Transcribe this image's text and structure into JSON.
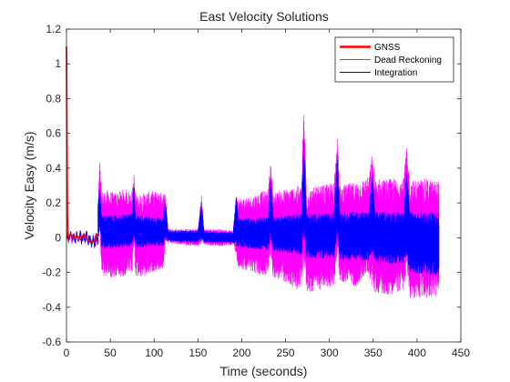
{
  "chart_data": {
    "type": "line",
    "title": "East Velocity Solutions",
    "xlabel": "Time (seconds)",
    "ylabel": "Velocity Easy (m/s)",
    "xlim": [
      0,
      450
    ],
    "ylim": [
      -0.6,
      1.2
    ],
    "xticks": [
      0,
      50,
      100,
      150,
      200,
      250,
      300,
      350,
      400,
      450
    ],
    "yticks": [
      -0.6,
      -0.4,
      -0.2,
      0,
      0.2,
      0.4,
      0.6,
      0.8,
      1,
      1.2
    ],
    "xtick_labels": [
      "0",
      "50",
      "100",
      "150",
      "200",
      "250",
      "300",
      "350",
      "400",
      "450"
    ],
    "ytick_labels": [
      "-0.6",
      "-0.4",
      "-0.2",
      "0",
      "0.2",
      "0.4",
      "0.6",
      "0.8",
      "1",
      "1.2"
    ],
    "grid": false,
    "legend_position": "top-right",
    "series": [
      {
        "name": "GNSS",
        "color": "#ff0000",
        "x": [
          0,
          0.5,
          1,
          1.5,
          2,
          3,
          5,
          8,
          12,
          16,
          20,
          24,
          28,
          32,
          34,
          36
        ],
        "y": [
          1.1,
          0.6,
          0.15,
          0.04,
          0.0,
          0.01,
          0.02,
          0.0,
          0.01,
          -0.01,
          0.02,
          -0.01,
          -0.03,
          -0.02,
          0.02,
          0.01
        ]
      },
      {
        "name": "Dead Reckoning",
        "color": "#ff00ff",
        "envelope": [
          [
            36,
            -0.05,
            0.2
          ],
          [
            38,
            0.05,
            0.45
          ],
          [
            40,
            -0.22,
            0.27
          ],
          [
            48,
            -0.23,
            0.27
          ],
          [
            56,
            -0.24,
            0.26
          ],
          [
            66,
            -0.22,
            0.28
          ],
          [
            75,
            -0.2,
            0.27
          ],
          [
            77,
            -0.05,
            0.37
          ],
          [
            79,
            -0.22,
            0.25
          ],
          [
            88,
            -0.23,
            0.26
          ],
          [
            98,
            -0.2,
            0.27
          ],
          [
            110,
            -0.18,
            0.26
          ],
          [
            113,
            -0.05,
            0.26
          ],
          [
            116,
            -0.03,
            0.05
          ],
          [
            130,
            -0.04,
            0.05
          ],
          [
            150,
            -0.05,
            0.05
          ],
          [
            154,
            -0.03,
            0.25
          ],
          [
            157,
            -0.04,
            0.05
          ],
          [
            175,
            -0.05,
            0.05
          ],
          [
            190,
            -0.04,
            0.04
          ],
          [
            194,
            -0.1,
            0.27
          ],
          [
            196,
            -0.18,
            0.23
          ],
          [
            210,
            -0.19,
            0.24
          ],
          [
            225,
            -0.23,
            0.27
          ],
          [
            230,
            -0.2,
            0.27
          ],
          [
            233,
            -0.1,
            0.45
          ],
          [
            236,
            -0.23,
            0.26
          ],
          [
            250,
            -0.26,
            0.28
          ],
          [
            262,
            -0.3,
            0.3
          ],
          [
            268,
            -0.28,
            0.3
          ],
          [
            271,
            -0.15,
            0.77
          ],
          [
            274,
            -0.32,
            0.28
          ],
          [
            290,
            -0.3,
            0.3
          ],
          [
            305,
            -0.28,
            0.32
          ],
          [
            309,
            -0.1,
            0.6
          ],
          [
            312,
            -0.25,
            0.3
          ],
          [
            330,
            -0.28,
            0.32
          ],
          [
            345,
            -0.2,
            0.35
          ],
          [
            349,
            -0.3,
            0.5
          ],
          [
            352,
            -0.32,
            0.34
          ],
          [
            370,
            -0.33,
            0.34
          ],
          [
            385,
            -0.3,
            0.35
          ],
          [
            388,
            -0.2,
            0.53
          ],
          [
            392,
            -0.35,
            0.33
          ],
          [
            410,
            -0.35,
            0.34
          ],
          [
            425,
            -0.34,
            0.33
          ]
        ]
      },
      {
        "name": "Integration",
        "color": "#0000ff",
        "envelope": [
          [
            36,
            -0.03,
            0.2
          ],
          [
            38,
            0.05,
            0.32
          ],
          [
            40,
            -0.06,
            0.13
          ],
          [
            56,
            -0.06,
            0.13
          ],
          [
            75,
            -0.05,
            0.14
          ],
          [
            77,
            0.0,
            0.33
          ],
          [
            79,
            -0.06,
            0.13
          ],
          [
            98,
            -0.05,
            0.12
          ],
          [
            110,
            -0.05,
            0.12
          ],
          [
            113,
            -0.02,
            0.22
          ],
          [
            116,
            -0.02,
            0.04
          ],
          [
            150,
            -0.03,
            0.04
          ],
          [
            154,
            -0.02,
            0.22
          ],
          [
            157,
            -0.03,
            0.04
          ],
          [
            190,
            -0.03,
            0.03
          ],
          [
            194,
            -0.05,
            0.26
          ],
          [
            196,
            -0.06,
            0.11
          ],
          [
            230,
            -0.07,
            0.12
          ],
          [
            233,
            0.0,
            0.35
          ],
          [
            236,
            -0.08,
            0.12
          ],
          [
            268,
            -0.1,
            0.14
          ],
          [
            271,
            0.0,
            0.62
          ],
          [
            274,
            -0.12,
            0.14
          ],
          [
            305,
            -0.12,
            0.14
          ],
          [
            309,
            0.0,
            0.52
          ],
          [
            312,
            -0.13,
            0.15
          ],
          [
            345,
            -0.13,
            0.15
          ],
          [
            349,
            -0.1,
            0.38
          ],
          [
            352,
            -0.15,
            0.15
          ],
          [
            385,
            -0.15,
            0.15
          ],
          [
            388,
            -0.1,
            0.45
          ],
          [
            392,
            -0.2,
            0.15
          ],
          [
            425,
            -0.22,
            0.15
          ]
        ]
      }
    ]
  }
}
